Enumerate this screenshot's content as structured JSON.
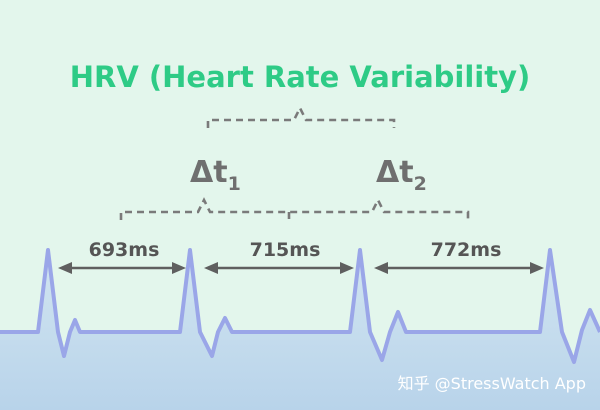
{
  "title": "HRV (Heart Rate Variability)",
  "deltas": [
    {
      "symbol": "Δt",
      "subscript": "1"
    },
    {
      "symbol": "Δt",
      "subscript": "2"
    }
  ],
  "intervals": [
    "693ms",
    "715ms",
    "772ms"
  ],
  "watermark": "知乎 @StressWatch App",
  "colors": {
    "background": "#e3f6ec",
    "title": "#2ecb86",
    "ecg_line": "#9aa6e8",
    "ecg_fill": "#c9dff0",
    "text": "#555555",
    "bracket": "#7a7a7a"
  }
}
